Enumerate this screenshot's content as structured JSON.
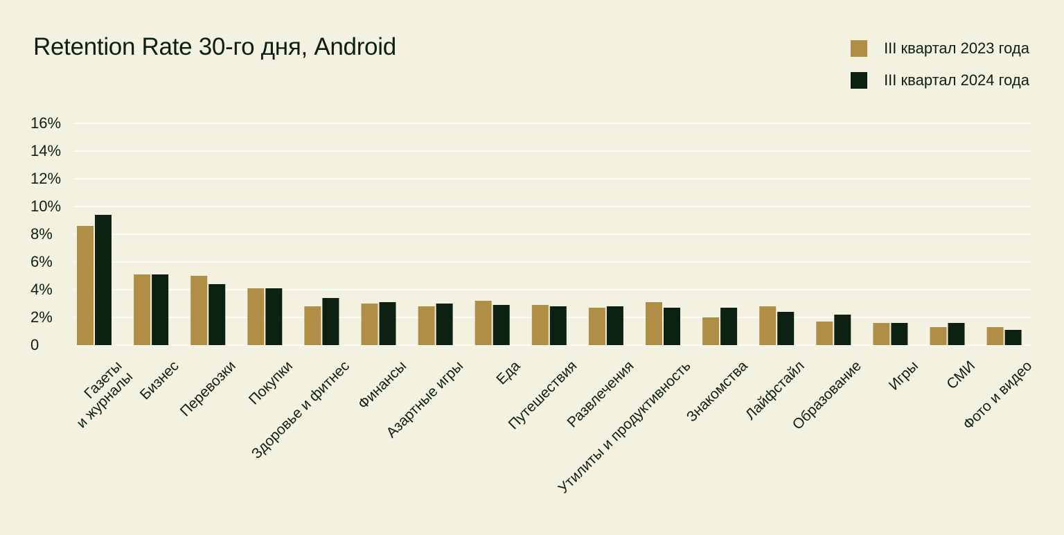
{
  "colors": {
    "background": "#f3f1df",
    "text": "#0d1f12",
    "gridline": "#ffffff",
    "series_2023": "#b08e45",
    "series_2024": "#0c2112"
  },
  "chart_data": {
    "type": "bar",
    "title": "Retention Rate 30-го дня, Android",
    "xlabel": "",
    "ylabel": "",
    "ylim": [
      0,
      16
    ],
    "grid": true,
    "legend_position": "top-right",
    "yticks": [
      "0",
      "2%",
      "4%",
      "6%",
      "8%",
      "10%",
      "12%",
      "14%",
      "16%"
    ],
    "categories": [
      [
        "Газеты",
        "и журналы"
      ],
      [
        "Бизнес"
      ],
      [
        "Перевозки"
      ],
      [
        "Покупки"
      ],
      [
        "Здоровье и фитнес"
      ],
      [
        "Финансы"
      ],
      [
        "Азартные игры"
      ],
      [
        "Еда"
      ],
      [
        "Путешествия"
      ],
      [
        "Развлечения"
      ],
      [
        "Утилиты и продуктивность"
      ],
      [
        "Знакомства"
      ],
      [
        "Лайфстайл"
      ],
      [
        "Образование"
      ],
      [
        "Игры"
      ],
      [
        "СМИ"
      ],
      [
        "Фото и видео"
      ]
    ],
    "series": [
      {
        "name": "III квартал 2023 года",
        "color": "#b08e45",
        "values": [
          8.6,
          5.1,
          5.0,
          4.1,
          2.8,
          3.0,
          2.8,
          3.2,
          2.9,
          2.7,
          3.1,
          2.0,
          2.8,
          1.7,
          1.6,
          1.3,
          1.3
        ]
      },
      {
        "name": "III квартал 2024 года",
        "color": "#0c2112",
        "values": [
          9.4,
          5.1,
          4.4,
          4.1,
          3.4,
          3.1,
          3.0,
          2.9,
          2.8,
          2.8,
          2.7,
          2.7,
          2.4,
          2.2,
          1.6,
          1.6,
          1.1
        ]
      }
    ]
  }
}
